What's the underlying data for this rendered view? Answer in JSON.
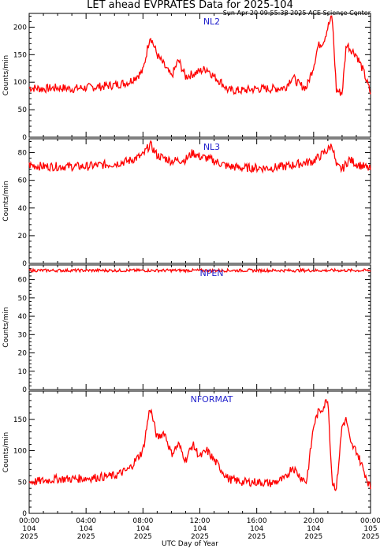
{
  "header": {
    "title": "LET ahead EVPRATES Data for 2025-104",
    "timestamp": "Sun Apr 20 09:55:38 2025 ACE Science Center"
  },
  "x_axis_title": "UTC Day of Year",
  "chart_data": [
    {
      "type": "line",
      "panel": "NL2",
      "ylabel": "Counts/min",
      "ylim": [
        0,
        225
      ],
      "yticks": [
        0,
        50,
        100,
        150,
        200
      ],
      "series_color": "#ff0000",
      "x_hours": [
        0,
        1,
        2,
        3,
        4,
        5,
        6,
        7,
        8,
        8.5,
        9,
        9.5,
        10,
        10.5,
        11,
        11.5,
        12,
        12.5,
        13,
        13.5,
        14,
        15,
        16,
        17,
        18,
        18.5,
        19,
        19.5,
        20,
        20.3,
        20.7,
        21,
        21.3,
        21.6,
        22,
        22.3,
        22.6,
        23,
        23.5,
        24
      ],
      "values": [
        90,
        88,
        90,
        88,
        90,
        92,
        95,
        100,
        120,
        185,
        150,
        130,
        110,
        140,
        110,
        115,
        120,
        125,
        110,
        100,
        85,
        85,
        88,
        88,
        90,
        110,
        95,
        90,
        130,
        165,
        175,
        200,
        220,
        85,
        80,
        170,
        160,
        150,
        120,
        80
      ]
    },
    {
      "type": "line",
      "panel": "NL3",
      "ylabel": "Counts/min",
      "ylim": [
        0,
        90
      ],
      "yticks": [
        0,
        20,
        40,
        60,
        80
      ],
      "series_color": "#ff0000",
      "x_hours": [
        0,
        1,
        2,
        3,
        4,
        5,
        6,
        7,
        8,
        8.5,
        9,
        9.5,
        10,
        11,
        11.5,
        12,
        12.5,
        13,
        14,
        15,
        16,
        17,
        18,
        19,
        20,
        20.5,
        21,
        21.3,
        21.6,
        22,
        22.5,
        23,
        23.5,
        24
      ],
      "values": [
        71,
        70,
        70,
        70,
        70,
        71,
        72,
        74,
        78,
        86,
        78,
        76,
        74,
        75,
        80,
        77,
        76,
        74,
        70,
        69,
        69,
        69,
        70,
        72,
        74,
        78,
        82,
        86,
        70,
        68,
        75,
        72,
        70,
        68
      ]
    },
    {
      "type": "line",
      "panel": "NPEN",
      "ylabel": "Counts/min",
      "ylim": [
        0,
        68
      ],
      "yticks": [
        0,
        10,
        20,
        30,
        40,
        50,
        60
      ],
      "series_color": "#ff0000",
      "x_hours": [
        0,
        2,
        4,
        6,
        8,
        10,
        12,
        14,
        16,
        18,
        20,
        22,
        24
      ],
      "values": [
        65,
        65,
        65,
        65,
        65,
        65,
        65,
        65,
        65,
        65,
        65,
        65,
        65
      ]
    },
    {
      "type": "line",
      "panel": "NFORMAT",
      "ylabel": "Counts/min",
      "ylim": [
        0,
        195
      ],
      "yticks": [
        0,
        50,
        100,
        150
      ],
      "series_color": "#ff0000",
      "x_hours": [
        0,
        1,
        2,
        3,
        4,
        5,
        6,
        7,
        7.5,
        8,
        8.5,
        9,
        9.5,
        10,
        10.5,
        11,
        11.5,
        12,
        12.5,
        13,
        13.5,
        14,
        15,
        16,
        17,
        18,
        18.5,
        19,
        19.5,
        20,
        20.3,
        20.7,
        21,
        21.3,
        21.6,
        22,
        22.3,
        22.6,
        23,
        23.5,
        24
      ],
      "values": [
        50,
        52,
        55,
        55,
        56,
        58,
        60,
        70,
        85,
        100,
        170,
        120,
        130,
        95,
        110,
        85,
        110,
        90,
        100,
        85,
        70,
        55,
        50,
        50,
        48,
        55,
        75,
        60,
        50,
        140,
        160,
        170,
        185,
        50,
        40,
        140,
        150,
        110,
        100,
        70,
        40
      ]
    }
  ],
  "x_ticks": [
    {
      "hour": 0,
      "time": "00:00",
      "day": "104",
      "year": "2025"
    },
    {
      "hour": 4,
      "time": "04:00",
      "day": "104",
      "year": "2025"
    },
    {
      "hour": 8,
      "time": "08:00",
      "day": "104",
      "year": "2025"
    },
    {
      "hour": 12,
      "time": "12:00",
      "day": "104",
      "year": "2025"
    },
    {
      "hour": 16,
      "time": "16:00",
      "day": "104",
      "year": "2025"
    },
    {
      "hour": 20,
      "time": "20:00",
      "day": "104",
      "year": "2025"
    },
    {
      "hour": 24,
      "time": "00:00",
      "day": "105",
      "year": "2025"
    }
  ]
}
